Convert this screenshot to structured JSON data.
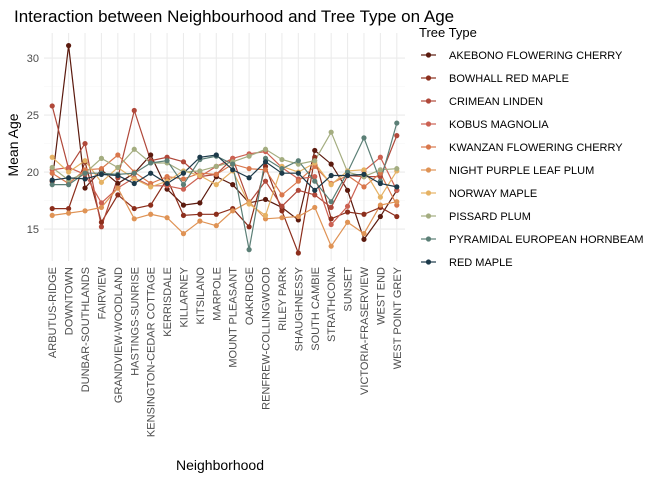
{
  "chart_data": {
    "type": "line",
    "title": "Interaction between Neighbourhood and Tree Type on Age",
    "xlabel": "Neighborhood",
    "ylabel": "Mean Age",
    "ylim": [
      12.2,
      32.2
    ],
    "yticks": [
      15,
      20,
      25,
      30
    ],
    "grid": true,
    "legend_title": "Tree Type",
    "legend_position": "right",
    "categories": [
      "ARBUTUS-RIDGE",
      "DOWNTOWN",
      "DUNBAR-SOUTHLANDS",
      "FAIRVIEW",
      "GRANDVIEW-WOODLAND",
      "HASTINGS-SUNRISE",
      "KENSINGTON-CEDAR COTTAGE",
      "KERRISDALE",
      "KILLARNEY",
      "KITSILANO",
      "MARPOLE",
      "MOUNT PLEASANT",
      "OAKRIDGE",
      "RENFREW-COLLINGWOOD",
      "RILEY PARK",
      "SHAUGHNESSY",
      "SOUTH CAMBIE",
      "STRATHCONA",
      "SUNSET",
      "VICTORIA-FRASERVIEW",
      "WEST END",
      "WEST POINT GREY"
    ],
    "series": [
      {
        "name": "AKEBONO FLOWERING CHERRY",
        "color": "#5b1a0e",
        "values": [
          19.2,
          31.1,
          18.6,
          20.2,
          19.0,
          19.9,
          21.5,
          18.5,
          17.1,
          17.3,
          19.6,
          18.9,
          17.3,
          17.6,
          16.9,
          15.8,
          21.9,
          20.7,
          18.4,
          14.1,
          16.1,
          18.4
        ]
      },
      {
        "name": "BOWHALL RED MAPLE",
        "color": "#8c2e1c",
        "values": [
          16.8,
          16.8,
          20.9,
          15.6,
          18.0,
          16.8,
          17.1,
          19.4,
          16.2,
          16.3,
          16.3,
          16.8,
          15.2,
          20.5,
          16.6,
          12.9,
          21.3,
          15.9,
          16.5,
          16.3,
          16.9,
          16.1
        ]
      },
      {
        "name": "CRIMEAN LINDEN",
        "color": "#b0483a",
        "values": [
          25.8,
          20.3,
          22.5,
          15.2,
          19.5,
          25.4,
          21.0,
          21.3,
          20.9,
          19.6,
          19.8,
          21.2,
          17.3,
          19.2,
          17.0,
          18.4,
          18.0,
          16.9,
          19.7,
          19.6,
          19.6,
          23.2
        ]
      },
      {
        "name": "KOBUS MAGNOLIA",
        "color": "#cc6152",
        "values": [
          20.2,
          20.4,
          19.8,
          17.3,
          18.6,
          19.5,
          18.8,
          18.8,
          18.5,
          19.6,
          20.5,
          21.2,
          21.6,
          21.8,
          20.4,
          19.4,
          19.6,
          15.4,
          17.0,
          20.1,
          21.3,
          18.4
        ]
      },
      {
        "name": "KWANZAN FLOWERING CHERRY",
        "color": "#d9774c",
        "values": [
          19.9,
          19.0,
          20.2,
          20.3,
          21.5,
          20.0,
          19.0,
          19.6,
          19.4,
          19.9,
          19.8,
          20.7,
          20.3,
          20.2,
          18.0,
          19.2,
          20.5,
          19.0,
          19.7,
          18.7,
          19.9,
          17.1
        ]
      },
      {
        "name": "NIGHT PURPLE LEAF PLUM",
        "color": "#df9355",
        "values": [
          16.2,
          16.4,
          16.6,
          16.9,
          18.6,
          15.9,
          16.3,
          16.0,
          14.6,
          15.7,
          15.3,
          16.6,
          17.4,
          15.9,
          16.0,
          16.1,
          16.9,
          13.5,
          15.6,
          14.6,
          17.1,
          17.4
        ]
      },
      {
        "name": "NORWAY MAPLE",
        "color": "#e5b264",
        "values": [
          21.3,
          20.0,
          21.0,
          19.1,
          20.4,
          19.4,
          18.7,
          19.2,
          20.1,
          19.7,
          18.9,
          20.1,
          17.2,
          16.2,
          20.5,
          20.0,
          20.8,
          18.9,
          20.1,
          20.2,
          17.8,
          20.1
        ]
      },
      {
        "name": "PISSARD PLUM",
        "color": "#a4ad80",
        "values": [
          20.4,
          19.3,
          19.9,
          21.2,
          20.4,
          22.0,
          20.8,
          20.8,
          20.0,
          20.1,
          20.5,
          20.9,
          21.4,
          22.0,
          21.1,
          20.7,
          21.0,
          23.5,
          20.0,
          19.6,
          20.2,
          20.3
        ]
      },
      {
        "name": "PYRAMIDAL EUROPEAN HORNBEAM",
        "color": "#5b7f76",
        "values": [
          18.9,
          18.9,
          19.9,
          19.9,
          19.8,
          19.9,
          20.8,
          21.0,
          18.9,
          21.1,
          21.4,
          20.7,
          13.2,
          21.2,
          20.3,
          21.0,
          19.2,
          17.4,
          20.0,
          23.0,
          19.2,
          24.3
        ]
      },
      {
        "name": "RED MAPLE",
        "color": "#1c3a4a",
        "values": [
          19.3,
          19.5,
          19.4,
          19.8,
          19.7,
          19.0,
          19.9,
          19.0,
          19.9,
          21.3,
          21.5,
          20.2,
          19.5,
          20.9,
          19.9,
          19.9,
          18.4,
          19.7,
          19.7,
          19.8,
          19.0,
          18.7
        ]
      }
    ]
  }
}
